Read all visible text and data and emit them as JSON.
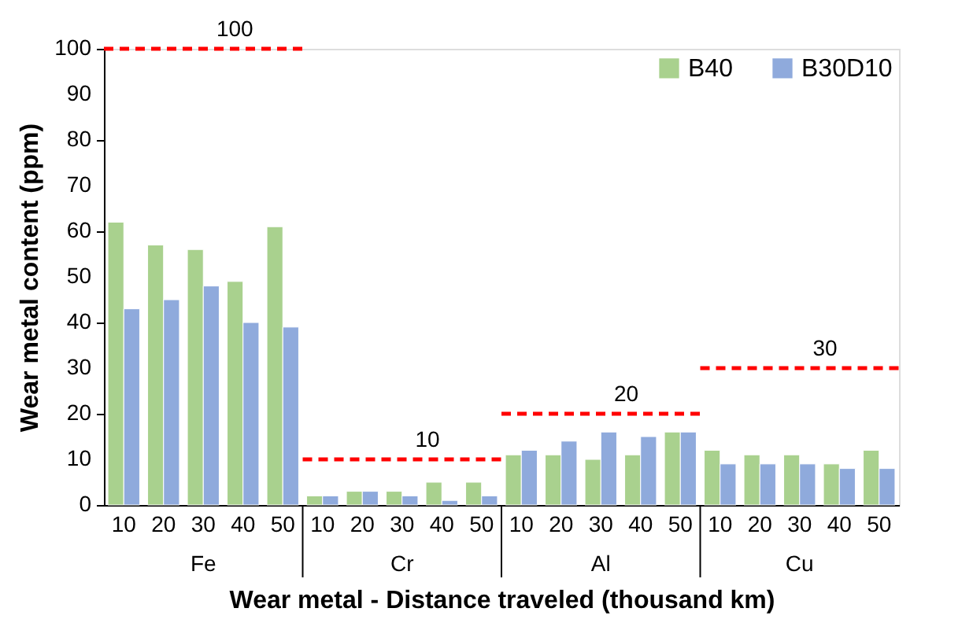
{
  "chart_data": {
    "type": "bar",
    "ylabel": "Wear metal content (ppm)",
    "xlabel": "Wear metal - Distance traveled (thousand km)",
    "categories": [
      "10",
      "20",
      "30",
      "40",
      "50",
      "10",
      "20",
      "30",
      "40",
      "50",
      "10",
      "20",
      "30",
      "40",
      "50",
      "10",
      "20",
      "30",
      "40",
      "50"
    ],
    "series": [
      {
        "name": "B40",
        "color": "#a9d18e",
        "values": [
          62,
          57,
          56,
          49,
          61,
          2,
          3,
          3,
          5,
          5,
          11,
          11,
          10,
          11,
          16,
          12,
          11,
          11,
          9,
          12
        ]
      },
      {
        "name": "B30D10",
        "color": "#8faadc",
        "values": [
          43,
          45,
          48,
          40,
          39,
          2,
          3,
          2,
          1,
          2,
          12,
          14,
          16,
          15,
          16,
          9,
          9,
          9,
          8,
          8
        ]
      }
    ],
    "annotations": [
      "Fe",
      "Cr",
      "Al",
      "Cu"
    ],
    "ref_lines": [
      {
        "axis": "y",
        "value": 100,
        "label": "100",
        "color": "#ff0000",
        "line_style": "dashed"
      },
      {
        "axis": "y",
        "value": 10,
        "label": "10",
        "color": "#ff0000",
        "line_style": "dashed"
      },
      {
        "axis": "y",
        "value": 20,
        "label": "20",
        "color": "#ff0000",
        "line_style": "dashed"
      },
      {
        "axis": "y",
        "value": 30,
        "label": "30",
        "color": "#ff0000",
        "line_style": "dashed"
      }
    ],
    "ylim": [
      0,
      100
    ],
    "yticks": [
      0,
      10,
      20,
      30,
      40,
      50,
      60,
      70,
      80,
      90,
      100
    ],
    "grid": false,
    "legend": "top right"
  }
}
